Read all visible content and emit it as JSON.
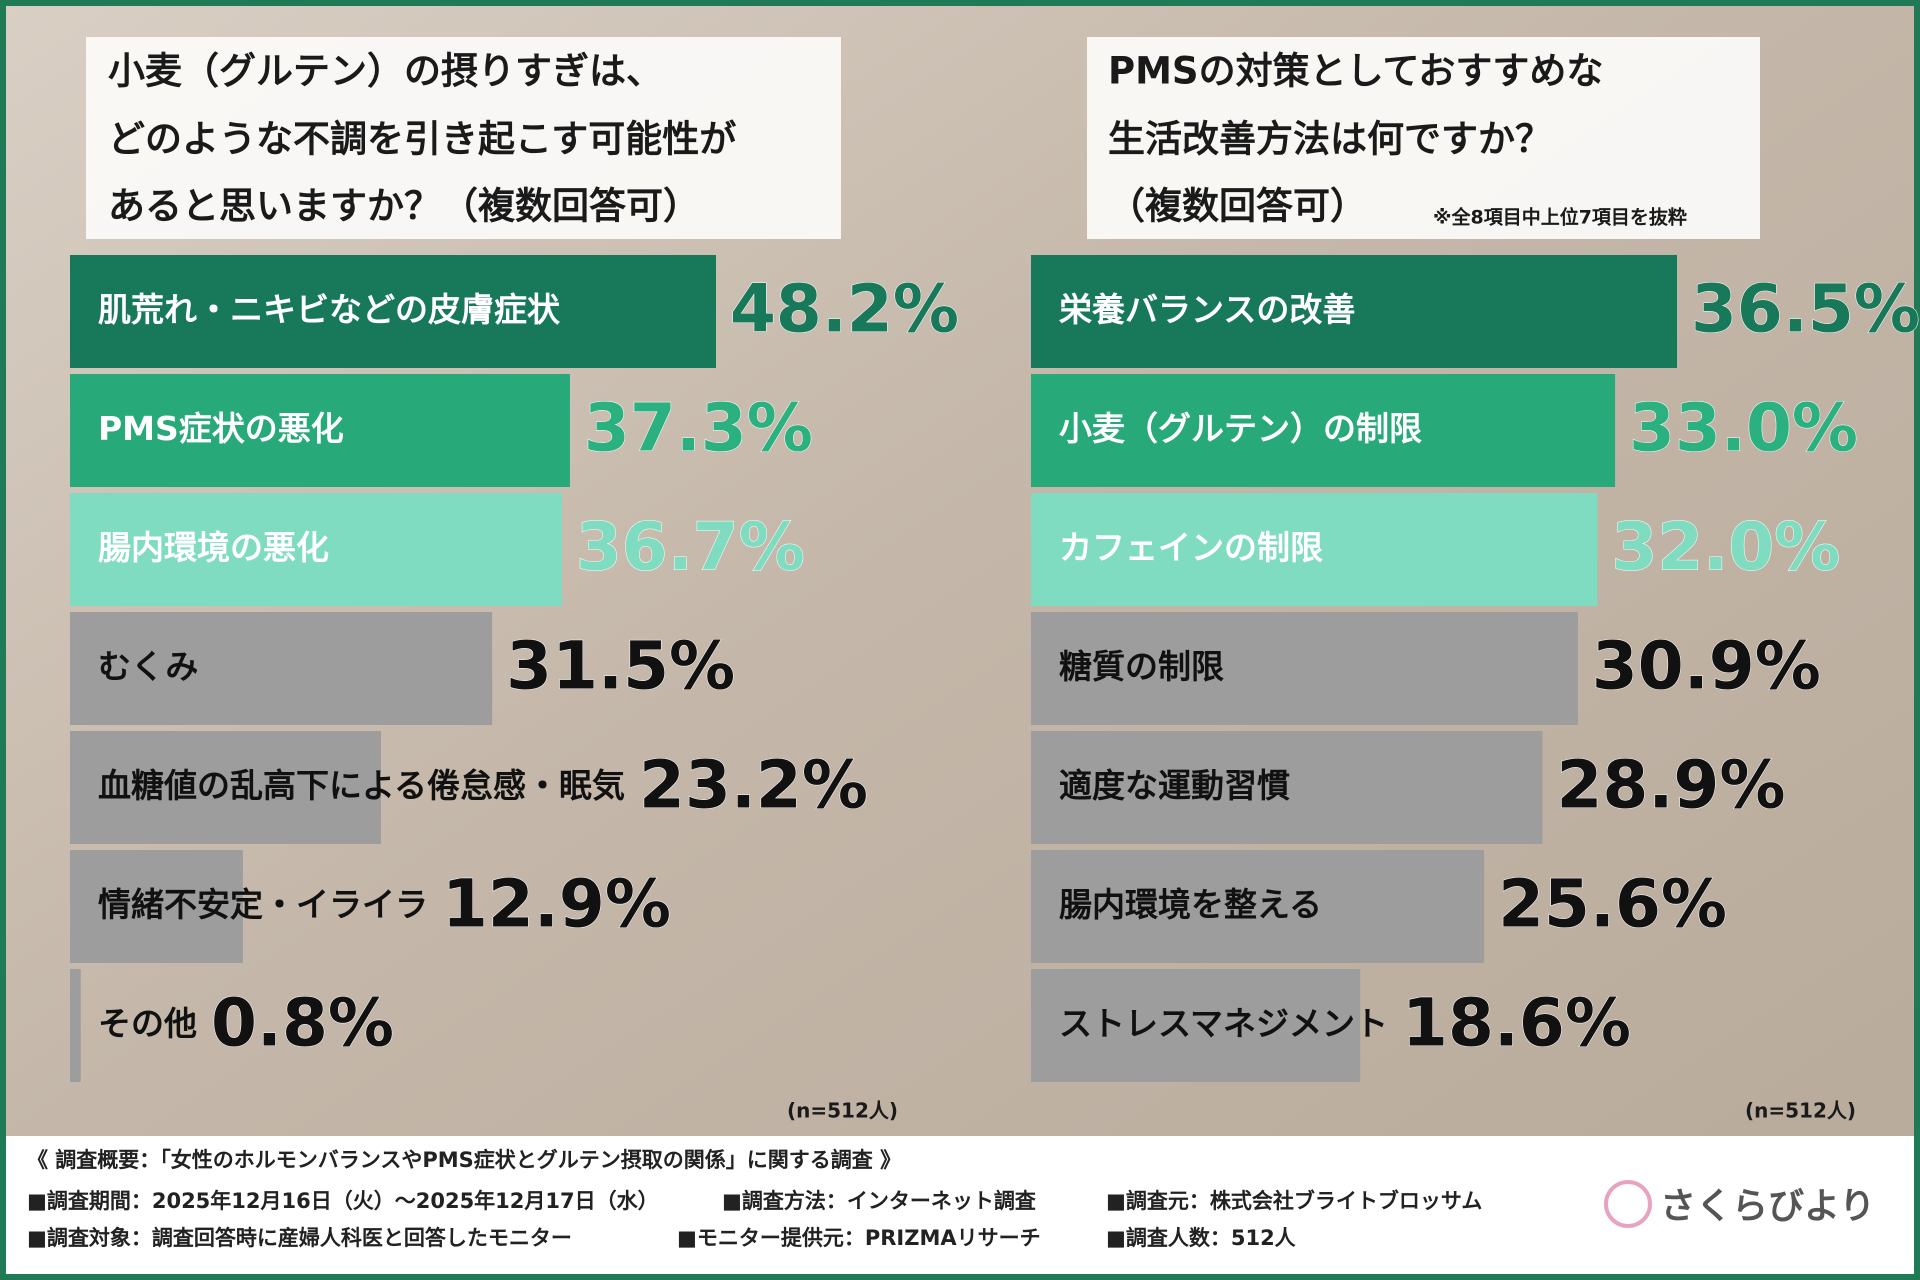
{
  "chart_data": [
    {
      "type": "bar",
      "orientation": "horizontal",
      "title": [
        "小麦（グルテン）の摂りすぎは、",
        "どのような不調を引き起こす可能性が",
        "あると思いますか？（複数回答可）"
      ],
      "categories": [
        "肌荒れ・ニキビなどの皮膚症状",
        "PMS症状の悪化",
        "腸内環境の悪化",
        "むくみ",
        "血糖値の乱高下による倦怠感・眠気",
        "情緒不安定・イライラ",
        "その他"
      ],
      "values": [
        48.2,
        37.3,
        36.7,
        31.5,
        23.2,
        12.9,
        0.8
      ],
      "value_labels": [
        "48.2%",
        "37.3%",
        "36.7%",
        "31.5%",
        "23.2%",
        "12.9%",
        "0.8%"
      ],
      "colors": [
        "#17785a",
        "#27a97a",
        "#7fdcc0",
        "#9d9d9d",
        "#9d9d9d",
        "#9d9d9d",
        "#9d9d9d"
      ],
      "bar_text_colors": [
        "#ffffff",
        "#ffffff",
        "#ffffff",
        "#111111",
        "#111111",
        "#111111",
        "#111111"
      ],
      "value_colors": [
        "#17785a",
        "#2bb07f",
        "#7fdcc0",
        "#111111",
        "#111111",
        "#111111",
        "#111111"
      ],
      "sample": "(n=512人)"
    },
    {
      "type": "bar",
      "orientation": "horizontal",
      "title": [
        "PMSの対策としておすすめな",
        "生活改善方法は何ですか？",
        "（複数回答可）"
      ],
      "note": "※全8項目中上位7項目を抜粋",
      "categories": [
        "栄養バランスの改善",
        "小麦（グルテン）の制限",
        "カフェインの制限",
        "糖質の制限",
        "適度な運動習慣",
        "腸内環境を整える",
        "ストレスマネジメント"
      ],
      "values": [
        36.5,
        33.0,
        32.0,
        30.9,
        28.9,
        25.6,
        18.6
      ],
      "value_labels": [
        "36.5%",
        "33.0%",
        "32.0%",
        "30.9%",
        "28.9%",
        "25.6%",
        "18.6%"
      ],
      "colors": [
        "#17785a",
        "#27a97a",
        "#7fdcc0",
        "#9d9d9d",
        "#9d9d9d",
        "#9d9d9d",
        "#9d9d9d"
      ],
      "bar_text_colors": [
        "#ffffff",
        "#ffffff",
        "#ffffff",
        "#111111",
        "#111111",
        "#111111",
        "#111111"
      ],
      "value_colors": [
        "#17785a",
        "#2bb07f",
        "#7fdcc0",
        "#111111",
        "#111111",
        "#111111",
        "#111111"
      ],
      "sample": "(n=512人)"
    }
  ],
  "footer": {
    "heading": "《 調査概要：「女性のホルモンバランスやPMS症状とグルテン摂取の関係」に関する調査 》",
    "items": [
      [
        "■調査期間：2025年12月16日（火）～2025年12月17日（水）",
        "■調査方法：インターネット調査",
        "■調査元：株式会社ブライトブロッサム"
      ],
      [
        "■調査対象：調査回答時に産婦人科医と回答したモニター",
        "■モニター提供元：PRIZMAリサーチ",
        "■調査人数：512人"
      ]
    ],
    "logo": "さくらびより"
  }
}
